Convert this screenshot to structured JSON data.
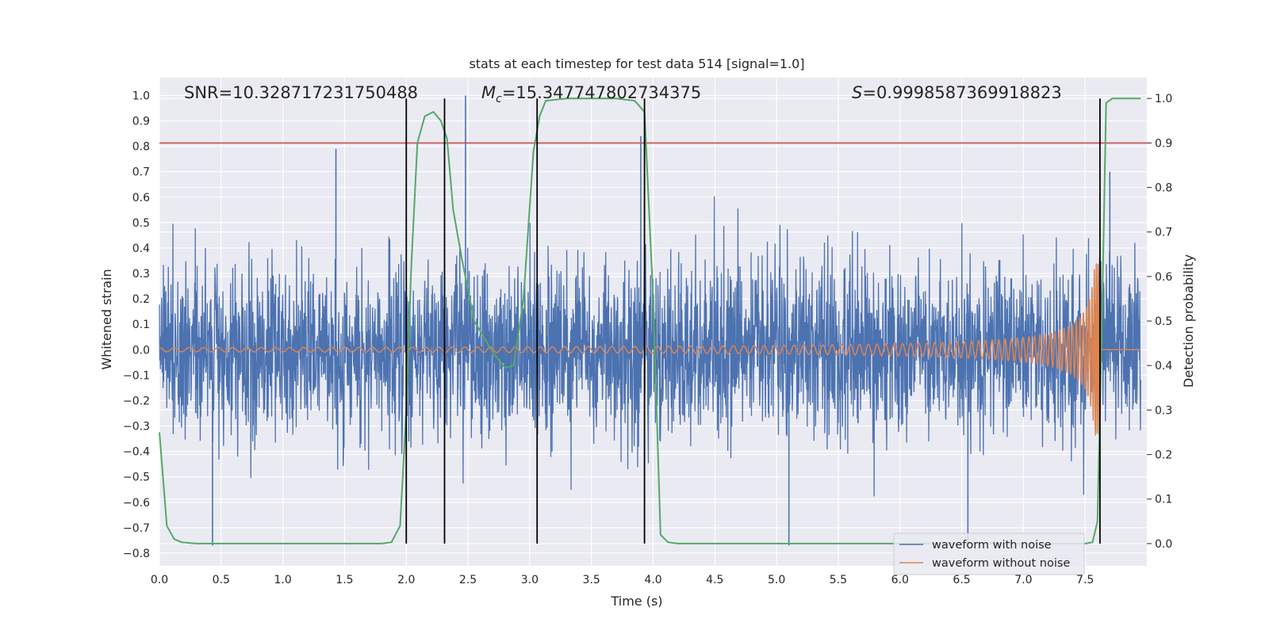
{
  "chart_data": {
    "type": "line",
    "title": "stats at each timestep for test data 514 [signal=1.0]",
    "xlabel": "Time (s)",
    "ylabel_left": "Whitened strain",
    "ylabel_right": "Detection probability",
    "xlim": [
      0.0,
      8.0
    ],
    "ylim_left": [
      -0.85,
      1.07
    ],
    "ylim_right": [
      -0.05,
      1.0467
    ],
    "x_ticks": [
      "0.0",
      "0.5",
      "1.0",
      "1.5",
      "2.0",
      "2.5",
      "3.0",
      "3.5",
      "4.0",
      "4.5",
      "5.0",
      "5.5",
      "6.0",
      "6.5",
      "7.0",
      "7.5"
    ],
    "y_ticks_left": [
      "-0.8",
      "-0.7",
      "-0.6",
      "-0.5",
      "-0.4",
      "-0.3",
      "-0.2",
      "-0.1",
      "0.0",
      "0.1",
      "0.2",
      "0.3",
      "0.4",
      "0.5",
      "0.6",
      "0.7",
      "0.8",
      "0.9",
      "1.0"
    ],
    "y_ticks_right": [
      "0.0",
      "0.1",
      "0.2",
      "0.3",
      "0.4",
      "0.5",
      "0.6",
      "0.7",
      "0.8",
      "0.9",
      "1.0"
    ],
    "annotations": {
      "snr": "SNR=10.328717231750488",
      "mc_symbol": "M",
      "mc_sub": "c",
      "mc_value": "=15.347747802734375",
      "s_symbol": "S",
      "s_value": "=0.9998587369918823"
    },
    "threshold": {
      "axis": "right",
      "value": 0.9,
      "color": "#c44e52"
    },
    "vertical_lines": [
      2.0,
      2.31,
      3.06,
      3.93,
      7.62
    ],
    "series": [
      {
        "name": "waveform with noise",
        "color": "#4c72b0",
        "axis": "left",
        "description_kind": "noise",
        "amplitude_typical": 0.4,
        "peaks": [
          [
            0.43,
            -0.77
          ],
          [
            1.43,
            0.79
          ],
          [
            2.48,
            1.0
          ],
          [
            3.9,
            0.84
          ],
          [
            5.1,
            -0.77
          ],
          [
            6.55,
            -0.77
          ],
          [
            7.7,
            0.7
          ]
        ]
      },
      {
        "name": "waveform without noise",
        "color": "#dd8452",
        "axis": "left",
        "description_kind": "chirp",
        "amplitude_start": 0.008,
        "amplitude_peak": 0.34,
        "merger_time": 7.62,
        "post_merger_value": 0.0
      },
      {
        "name": "detection probability",
        "color": "#55a868",
        "axis": "right",
        "x": [
          0.0,
          0.06,
          0.12,
          0.18,
          0.3,
          1.5,
          1.8,
          1.88,
          1.95,
          2.0,
          2.04,
          2.09,
          2.15,
          2.22,
          2.28,
          2.33,
          2.38,
          2.45,
          2.55,
          2.7,
          2.8,
          2.87,
          2.95,
          3.03,
          3.08,
          3.13,
          3.3,
          3.7,
          3.85,
          3.93,
          4.0,
          4.06,
          4.12,
          4.2,
          7.2,
          7.5,
          7.56,
          7.6,
          7.64,
          7.67,
          7.72,
          7.95
        ],
        "y": [
          0.25,
          0.04,
          0.01,
          0.003,
          0.0,
          0.0,
          0.0,
          0.003,
          0.04,
          0.3,
          0.62,
          0.9,
          0.96,
          0.97,
          0.95,
          0.91,
          0.75,
          0.64,
          0.5,
          0.43,
          0.395,
          0.4,
          0.55,
          0.88,
          0.96,
          0.995,
          1.0,
          1.0,
          0.995,
          0.97,
          0.55,
          0.02,
          0.003,
          0.0,
          0.0,
          0.0,
          0.003,
          0.05,
          0.55,
          0.99,
          1.0,
          1.0
        ]
      }
    ],
    "legend": {
      "location": "lower-right",
      "entries": [
        "waveform with noise",
        "waveform without noise"
      ]
    },
    "grid": true
  }
}
